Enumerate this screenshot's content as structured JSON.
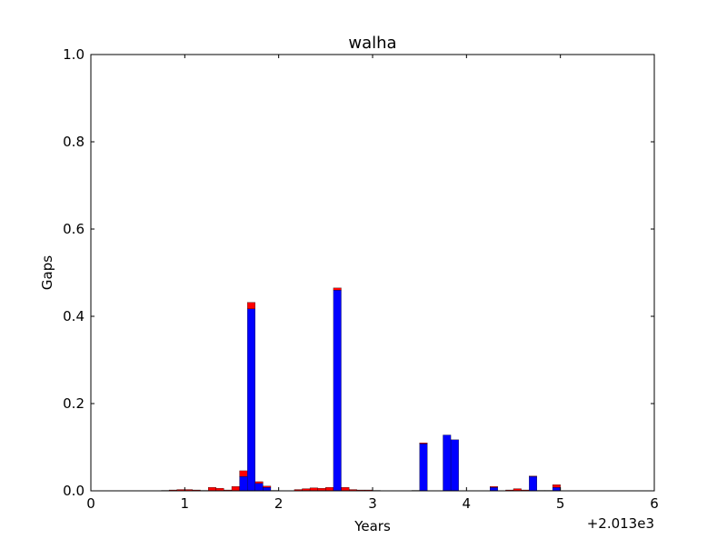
{
  "chart_data": {
    "type": "bar",
    "title": "walha",
    "xlabel": "Years",
    "ylabel": "Gaps",
    "x_offset_label": "+2.013e3",
    "xlim": [
      0,
      6
    ],
    "ylim": [
      0,
      1.0
    ],
    "x_ticks": [
      "0",
      "1",
      "2",
      "3",
      "4",
      "5",
      "6"
    ],
    "y_ticks": [
      "0.0",
      "0.2",
      "0.4",
      "0.6",
      "0.8",
      "1.0"
    ],
    "bar_width": 0.083,
    "grid": false,
    "legend": "none",
    "x": [
      0.75,
      0.833,
      0.917,
      1.0,
      1.083,
      1.167,
      1.25,
      1.333,
      1.417,
      1.5,
      1.583,
      1.667,
      1.75,
      1.833,
      1.917,
      2.0,
      2.083,
      2.167,
      2.25,
      2.333,
      2.417,
      2.5,
      2.583,
      2.667,
      2.75,
      2.833,
      2.917,
      3.0,
      3.083,
      3.167,
      3.25,
      3.333,
      3.417,
      3.5,
      3.583,
      3.667,
      3.75,
      3.833,
      3.917,
      4.0,
      4.083,
      4.167,
      4.25,
      4.333,
      4.417,
      4.5,
      4.583,
      4.667,
      4.75,
      4.833,
      4.917
    ],
    "series": [
      {
        "color": "#0000ff",
        "values": [
          0,
          0,
          0,
          0,
          0,
          0,
          0,
          0,
          0,
          0,
          0.033,
          0.417,
          0.017,
          0.008,
          0,
          0,
          0,
          0,
          0,
          0,
          0,
          0,
          0.46,
          0,
          0,
          0,
          0,
          0,
          0,
          0,
          0,
          0,
          0,
          0.108,
          0,
          0,
          0.128,
          0.117,
          0,
          0,
          0,
          0,
          0.008,
          0,
          0,
          0,
          0,
          0.033,
          0,
          0,
          0.008
        ]
      },
      {
        "color": "#ff0000",
        "values": [
          0.001,
          0.002,
          0.003,
          0.003,
          0.002,
          0.001,
          0.008,
          0.006,
          0.002,
          0.01,
          0.013,
          0.015,
          0.004,
          0.003,
          0.001,
          0,
          0,
          0.003,
          0.005,
          0.007,
          0.006,
          0.008,
          0.005,
          0.008,
          0.003,
          0.002,
          0.002,
          0.001,
          0,
          0,
          0,
          0,
          0.001,
          0.002,
          0,
          0,
          0,
          0,
          0,
          0,
          0,
          0,
          0.002,
          0,
          0.002,
          0.005,
          0.002,
          0.001,
          0.001,
          0.001,
          0.006
        ]
      }
    ]
  }
}
